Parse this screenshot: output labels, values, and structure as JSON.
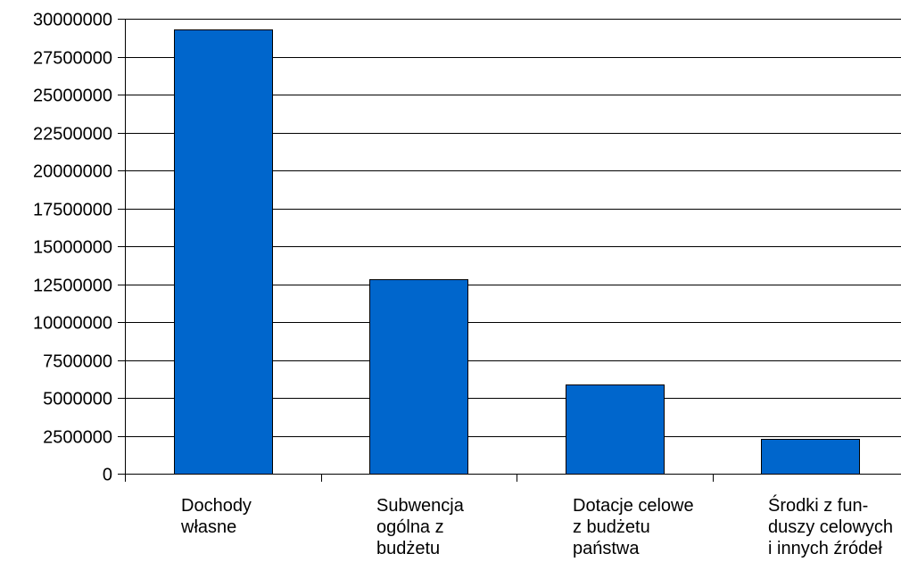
{
  "chart_data": {
    "type": "bar",
    "categories": [
      [
        "Dochody",
        "własne"
      ],
      [
        "Subwencja",
        "ogólna z",
        "budżetu"
      ],
      [
        "Dotacje celowe",
        "z budżetu",
        "państwa"
      ],
      [
        "Środki z fun-",
        "duszy celowych",
        "i innych źródeł"
      ]
    ],
    "values": [
      29300000,
      12800000,
      5900000,
      2300000
    ],
    "ylim": [
      0,
      30000000
    ],
    "yticks": [
      "0",
      "2500000",
      "5000000",
      "7500000",
      "10000000",
      "12500000",
      "15000000",
      "17500000",
      "20000000",
      "22500000",
      "25000000",
      "27500000",
      "30000000"
    ],
    "grid": true,
    "bar_color": "#0066cc",
    "bar_stroke": "#000000",
    "title": "",
    "xlabel": "",
    "ylabel": ""
  }
}
